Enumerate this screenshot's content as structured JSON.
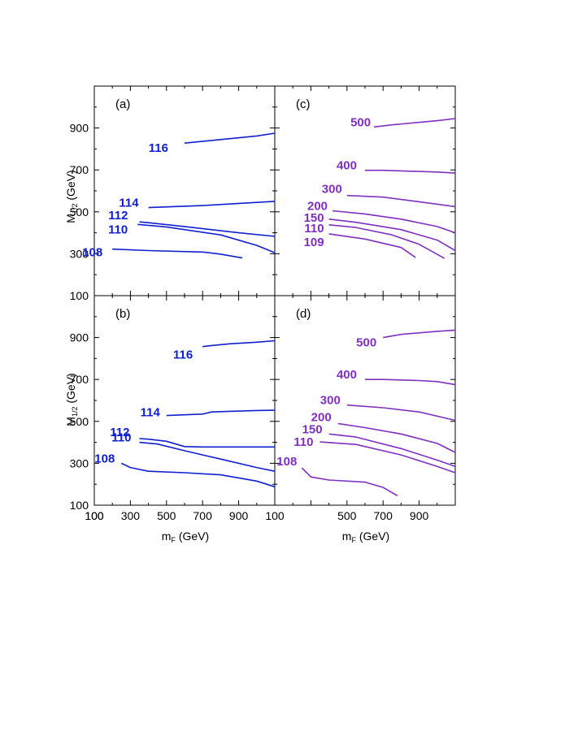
{
  "colors": {
    "blue": "#1020d0",
    "purple": "#8030c0",
    "frame": "#000000"
  },
  "labels": {
    "ylabel_main": "M",
    "ylabel_sub": "1/2",
    "ylabel_unit": " (GeV)",
    "xlabel_main": "m",
    "xlabel_sub": "F",
    "xlabel_unit": " (GeV)"
  },
  "chart_data": [
    {
      "panel": "(a)",
      "type": "line",
      "color": "blue",
      "xlim": [
        100,
        1100
      ],
      "ylim": [
        100,
        1100
      ],
      "y_ticks": [
        "100",
        "300",
        "500",
        "700",
        "900"
      ],
      "series": [
        {
          "name": "116",
          "x": [
            600,
            800,
            1000,
            1100
          ],
          "y": [
            828,
            845,
            862,
            875
          ]
        },
        {
          "name": "114",
          "x": [
            400,
            700,
            1000,
            1100
          ],
          "y": [
            520,
            530,
            545,
            550
          ]
        },
        {
          "name": "112",
          "x": [
            350,
            400,
            600,
            900,
            1100
          ],
          "y": [
            452,
            448,
            430,
            400,
            383
          ]
        },
        {
          "name": "110",
          "x": [
            340,
            500,
            800,
            1000,
            1100
          ],
          "y": [
            440,
            428,
            390,
            340,
            305
          ]
        },
        {
          "name": "108",
          "x": [
            200,
            400,
            700,
            800,
            920
          ],
          "y": [
            322,
            315,
            308,
            298,
            280
          ]
        }
      ]
    },
    {
      "panel": "(c)",
      "type": "line",
      "color": "purple",
      "xlim": [
        100,
        1100
      ],
      "ylim": [
        100,
        1100
      ],
      "series": [
        {
          "name": "500",
          "x": [
            650,
            750,
            1000,
            1100
          ],
          "y": [
            905,
            915,
            935,
            945
          ]
        },
        {
          "name": "400",
          "x": [
            600,
            700,
            1000,
            1100
          ],
          "y": [
            698,
            698,
            690,
            685
          ]
        },
        {
          "name": "300",
          "x": [
            500,
            700,
            900,
            1100
          ],
          "y": [
            578,
            570,
            548,
            525
          ]
        },
        {
          "name": "200",
          "x": [
            420,
            600,
            800,
            1000,
            1100
          ],
          "y": [
            505,
            490,
            465,
            430,
            400
          ]
        },
        {
          "name": "150",
          "x": [
            400,
            550,
            800,
            1000,
            1100
          ],
          "y": [
            465,
            450,
            415,
            365,
            315
          ]
        },
        {
          "name": "110",
          "x": [
            400,
            550,
            750,
            900,
            1040
          ],
          "y": [
            438,
            425,
            390,
            345,
            278
          ]
        },
        {
          "name": "109",
          "x": [
            400,
            600,
            800,
            880
          ],
          "y": [
            395,
            370,
            330,
            282
          ]
        }
      ]
    },
    {
      "panel": "(b)",
      "type": "line",
      "color": "blue",
      "xlim": [
        100,
        1100
      ],
      "ylim": [
        100,
        1100
      ],
      "x_ticks": [
        "100",
        "300",
        "500",
        "700",
        "900"
      ],
      "y_ticks": [
        "100",
        "300",
        "500",
        "700",
        "900"
      ],
      "xlabel": "m_F (GeV)",
      "series": [
        {
          "name": "116",
          "x": [
            700,
            750,
            850,
            1000,
            1100
          ],
          "y": [
            857,
            862,
            870,
            878,
            885
          ]
        },
        {
          "name": "114",
          "x": [
            500,
            700,
            750,
            850,
            1000,
            1100
          ],
          "y": [
            528,
            535,
            545,
            548,
            552,
            553
          ]
        },
        {
          "name": "112",
          "x": [
            350,
            400,
            500,
            600,
            700,
            900,
            1100
          ],
          "y": [
            418,
            415,
            405,
            380,
            378,
            378,
            378
          ]
        },
        {
          "name": "110",
          "x": [
            350,
            450,
            600,
            800,
            1000,
            1100
          ],
          "y": [
            400,
            392,
            360,
            320,
            280,
            262
          ]
        },
        {
          "name": "108",
          "x": [
            250,
            300,
            400,
            600,
            800,
            1000,
            1100
          ],
          "y": [
            300,
            280,
            262,
            255,
            245,
            215,
            188
          ]
        }
      ]
    },
    {
      "panel": "(d)",
      "type": "line",
      "color": "purple",
      "xlim": [
        100,
        1100
      ],
      "ylim": [
        100,
        1100
      ],
      "x_ticks": [
        "500",
        "700",
        "900"
      ],
      "xlabel": "m_F (GeV)",
      "series": [
        {
          "name": "500",
          "x": [
            700,
            800,
            1000,
            1100
          ],
          "y": [
            900,
            915,
            930,
            935
          ]
        },
        {
          "name": "400",
          "x": [
            600,
            700,
            900,
            1000,
            1100
          ],
          "y": [
            700,
            700,
            695,
            690,
            675
          ]
        },
        {
          "name": "300",
          "x": [
            500,
            700,
            900,
            1100
          ],
          "y": [
            578,
            565,
            545,
            505
          ]
        },
        {
          "name": "200",
          "x": [
            450,
            600,
            800,
            1000,
            1100
          ],
          "y": [
            490,
            470,
            440,
            395,
            352
          ]
        },
        {
          "name": "150",
          "x": [
            400,
            550,
            800,
            1000,
            1100
          ],
          "y": [
            440,
            425,
            370,
            315,
            285
          ]
        },
        {
          "name": "110",
          "x": [
            350,
            550,
            800,
            1000,
            1100
          ],
          "y": [
            402,
            390,
            340,
            285,
            255
          ]
        },
        {
          "name": "108",
          "x": [
            250,
            300,
            400,
            600,
            700,
            780
          ],
          "y": [
            278,
            235,
            220,
            210,
            185,
            145
          ]
        }
      ]
    }
  ]
}
